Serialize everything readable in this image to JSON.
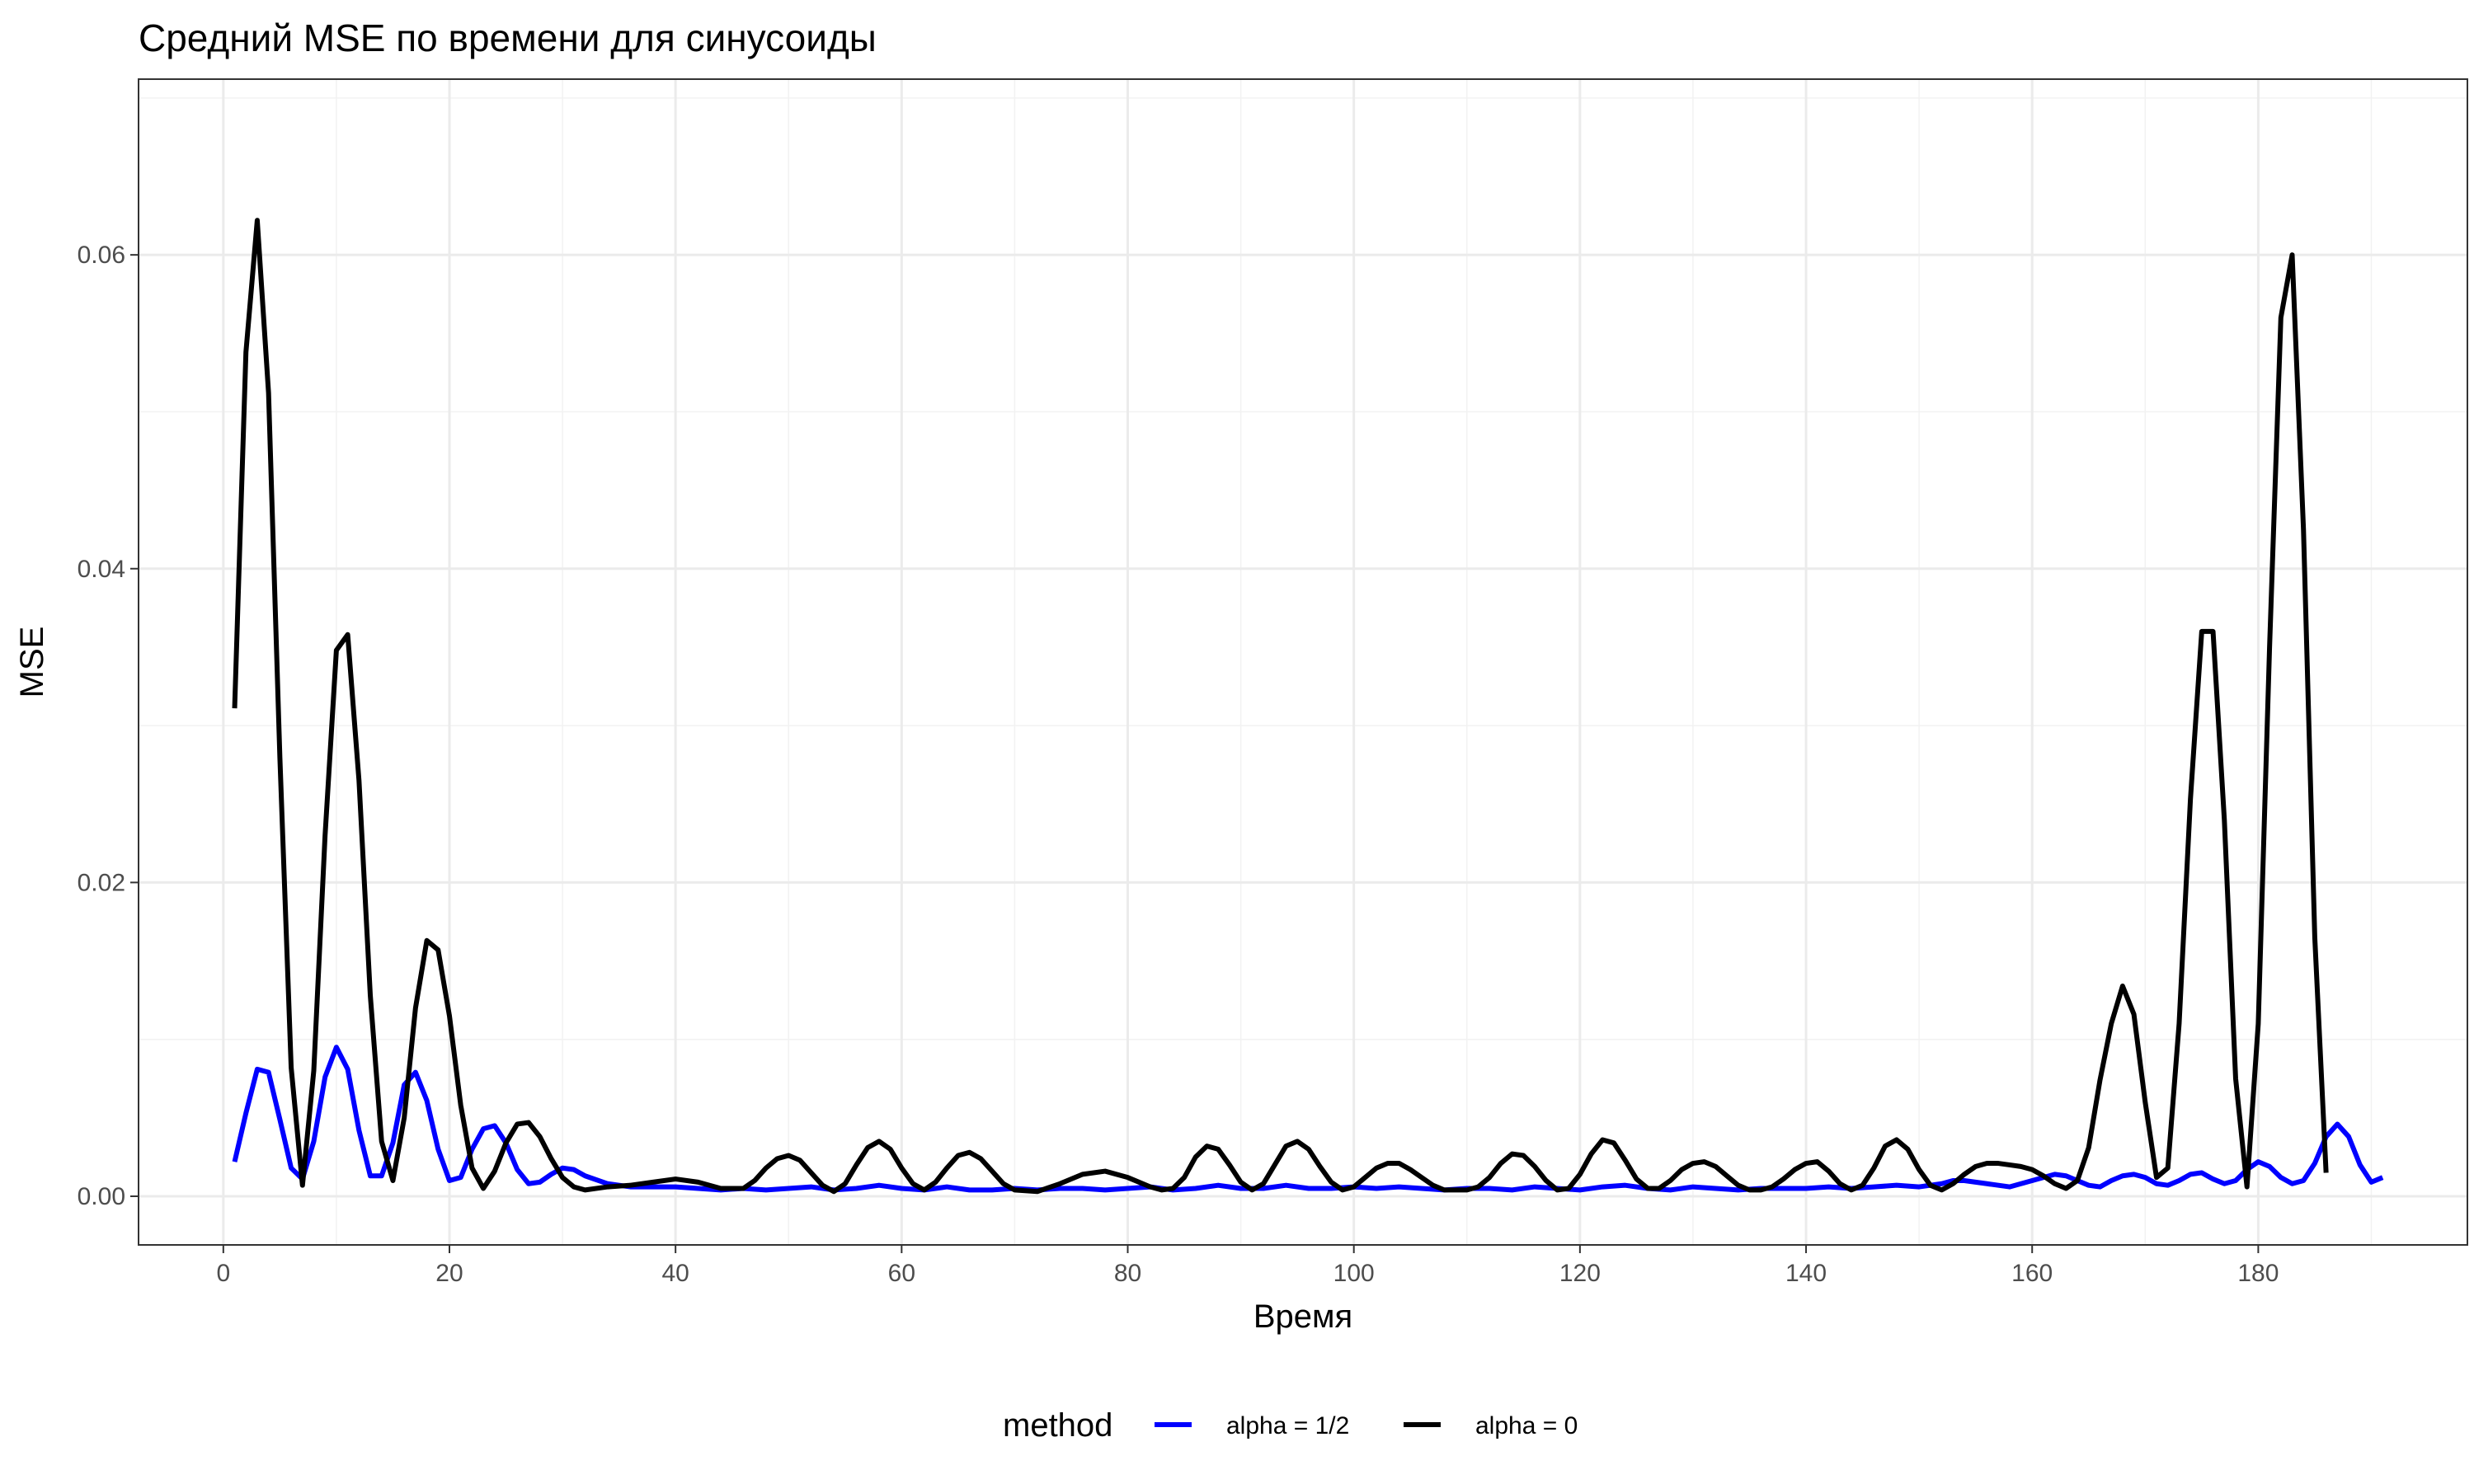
{
  "chart_data": {
    "type": "line",
    "title": "Средний MSE по времени для синусоиды",
    "xlabel": "Время",
    "ylabel": "MSE",
    "xlim": [
      -7.5,
      198.5
    ],
    "ylim": [
      -0.0031,
      0.0712
    ],
    "x_ticks": [
      0,
      20,
      40,
      60,
      80,
      100,
      120,
      140,
      160,
      180
    ],
    "x_tick_labels": [
      "0",
      "20",
      "40",
      "60",
      "80",
      "100",
      "120",
      "140",
      "160",
      "180"
    ],
    "y_ticks": [
      0.0,
      0.02,
      0.04,
      0.06
    ],
    "y_tick_labels": [
      "0.00",
      "0.02",
      "0.04",
      "0.06"
    ],
    "grid": true,
    "legend": {
      "title": "method",
      "position": "bottom"
    },
    "series": [
      {
        "name": "alpha = 1/2",
        "color": "#0000ff",
        "points": [
          [
            1,
            0.0022
          ],
          [
            2,
            0.0053
          ],
          [
            3,
            0.0081
          ],
          [
            4,
            0.0079
          ],
          [
            5,
            0.0049
          ],
          [
            6,
            0.0018
          ],
          [
            7,
            0.0011
          ],
          [
            8,
            0.0035
          ],
          [
            9,
            0.0076
          ],
          [
            10,
            0.0095
          ],
          [
            11,
            0.0081
          ],
          [
            12,
            0.0042
          ],
          [
            13,
            0.0013
          ],
          [
            14,
            0.0013
          ],
          [
            15,
            0.0034
          ],
          [
            16,
            0.0071
          ],
          [
            17,
            0.0079
          ],
          [
            18,
            0.0061
          ],
          [
            19,
            0.003
          ],
          [
            20,
            0.001
          ],
          [
            21,
            0.0012
          ],
          [
            22,
            0.003
          ],
          [
            23,
            0.0043
          ],
          [
            24,
            0.0045
          ],
          [
            25,
            0.0034
          ],
          [
            26,
            0.0017
          ],
          [
            27,
            0.0008
          ],
          [
            28,
            0.0009
          ],
          [
            29,
            0.0014
          ],
          [
            30,
            0.0018
          ],
          [
            31,
            0.0017
          ],
          [
            32,
            0.0013
          ],
          [
            34,
            0.0008
          ],
          [
            36,
            0.0006
          ],
          [
            38,
            0.0006
          ],
          [
            40,
            0.0006
          ],
          [
            42,
            0.0005
          ],
          [
            44,
            0.0004
          ],
          [
            46,
            0.0005
          ],
          [
            48,
            0.0004
          ],
          [
            50,
            0.0005
          ],
          [
            52,
            0.0006
          ],
          [
            54,
            0.0004
          ],
          [
            56,
            0.0005
          ],
          [
            58,
            0.0007
          ],
          [
            60,
            0.0005
          ],
          [
            62,
            0.0004
          ],
          [
            64,
            0.0006
          ],
          [
            66,
            0.0004
          ],
          [
            68,
            0.0004
          ],
          [
            70,
            0.0005
          ],
          [
            72,
            0.0004
          ],
          [
            74,
            0.0005
          ],
          [
            76,
            0.0005
          ],
          [
            78,
            0.0004
          ],
          [
            80,
            0.0005
          ],
          [
            82,
            0.0006
          ],
          [
            84,
            0.0004
          ],
          [
            86,
            0.0005
          ],
          [
            88,
            0.0007
          ],
          [
            90,
            0.0005
          ],
          [
            92,
            0.0005
          ],
          [
            94,
            0.0007
          ],
          [
            96,
            0.0005
          ],
          [
            98,
            0.0005
          ],
          [
            100,
            0.0006
          ],
          [
            102,
            0.0005
          ],
          [
            104,
            0.0006
          ],
          [
            106,
            0.0005
          ],
          [
            108,
            0.0004
          ],
          [
            110,
            0.0005
          ],
          [
            112,
            0.0005
          ],
          [
            114,
            0.0004
          ],
          [
            116,
            0.0006
          ],
          [
            118,
            0.0005
          ],
          [
            120,
            0.0004
          ],
          [
            122,
            0.0006
          ],
          [
            124,
            0.0007
          ],
          [
            126,
            0.0005
          ],
          [
            128,
            0.0004
          ],
          [
            130,
            0.0006
          ],
          [
            132,
            0.0005
          ],
          [
            134,
            0.0004
          ],
          [
            136,
            0.0005
          ],
          [
            138,
            0.0005
          ],
          [
            140,
            0.0005
          ],
          [
            142,
            0.0006
          ],
          [
            144,
            0.0005
          ],
          [
            146,
            0.0006
          ],
          [
            148,
            0.0007
          ],
          [
            150,
            0.0006
          ],
          [
            152,
            0.0008
          ],
          [
            153,
            0.001
          ],
          [
            154,
            0.001
          ],
          [
            156,
            0.0008
          ],
          [
            158,
            0.0006
          ],
          [
            160,
            0.001
          ],
          [
            162,
            0.0014
          ],
          [
            163,
            0.0013
          ],
          [
            164,
            0.001
          ],
          [
            165,
            0.0007
          ],
          [
            166,
            0.0006
          ],
          [
            167,
            0.001
          ],
          [
            168,
            0.0013
          ],
          [
            169,
            0.0014
          ],
          [
            170,
            0.0012
          ],
          [
            171,
            0.0008
          ],
          [
            172,
            0.0007
          ],
          [
            173,
            0.001
          ],
          [
            174,
            0.0014
          ],
          [
            175,
            0.0015
          ],
          [
            176,
            0.0011
          ],
          [
            177,
            0.0008
          ],
          [
            178,
            0.001
          ],
          [
            179,
            0.0017
          ],
          [
            180,
            0.0022
          ],
          [
            181,
            0.0019
          ],
          [
            182,
            0.0012
          ],
          [
            183,
            0.0008
          ],
          [
            184,
            0.001
          ],
          [
            185,
            0.0021
          ],
          [
            186,
            0.0038
          ],
          [
            187,
            0.0046
          ],
          [
            188,
            0.0038
          ],
          [
            189,
            0.002
          ],
          [
            190,
            0.0009
          ],
          [
            191,
            0.0012
          ]
        ]
      },
      {
        "name": "alpha = 0",
        "color": "#000000",
        "points": [
          [
            1,
            0.0311
          ],
          [
            2,
            0.0538
          ],
          [
            3,
            0.0622
          ],
          [
            4,
            0.0512
          ],
          [
            5,
            0.028
          ],
          [
            6,
            0.0082
          ],
          [
            7,
            0.0007
          ],
          [
            8,
            0.008
          ],
          [
            9,
            0.023
          ],
          [
            10,
            0.0348
          ],
          [
            11,
            0.0358
          ],
          [
            12,
            0.0265
          ],
          [
            13,
            0.0128
          ],
          [
            14,
            0.0035
          ],
          [
            15,
            0.001
          ],
          [
            16,
            0.005
          ],
          [
            17,
            0.012
          ],
          [
            18,
            0.0163
          ],
          [
            19,
            0.0157
          ],
          [
            20,
            0.0115
          ],
          [
            21,
            0.0058
          ],
          [
            22,
            0.0018
          ],
          [
            23,
            0.0005
          ],
          [
            24,
            0.0016
          ],
          [
            25,
            0.0034
          ],
          [
            26,
            0.0046
          ],
          [
            27,
            0.0047
          ],
          [
            28,
            0.0038
          ],
          [
            29,
            0.0024
          ],
          [
            30,
            0.0012
          ],
          [
            31,
            0.0006
          ],
          [
            32,
            0.0004
          ],
          [
            34,
            0.0006
          ],
          [
            36,
            0.0007
          ],
          [
            38,
            0.0009
          ],
          [
            40,
            0.0011
          ],
          [
            42,
            0.0009
          ],
          [
            44,
            0.0005
          ],
          [
            46,
            0.0005
          ],
          [
            47,
            0.001
          ],
          [
            48,
            0.0018
          ],
          [
            49,
            0.0024
          ],
          [
            50,
            0.0026
          ],
          [
            51,
            0.0023
          ],
          [
            52,
            0.0015
          ],
          [
            53,
            0.0007
          ],
          [
            54,
            0.0003
          ],
          [
            55,
            0.0008
          ],
          [
            56,
            0.002
          ],
          [
            57,
            0.0031
          ],
          [
            58,
            0.0035
          ],
          [
            59,
            0.003
          ],
          [
            60,
            0.0018
          ],
          [
            61,
            0.0008
          ],
          [
            62,
            0.0004
          ],
          [
            63,
            0.0009
          ],
          [
            64,
            0.0018
          ],
          [
            65,
            0.0026
          ],
          [
            66,
            0.0028
          ],
          [
            67,
            0.0024
          ],
          [
            68,
            0.0016
          ],
          [
            69,
            0.0008
          ],
          [
            70,
            0.0004
          ],
          [
            72,
            0.0003
          ],
          [
            74,
            0.0008
          ],
          [
            76,
            0.0014
          ],
          [
            78,
            0.0016
          ],
          [
            80,
            0.0012
          ],
          [
            82,
            0.0006
          ],
          [
            83,
            0.0004
          ],
          [
            84,
            0.0005
          ],
          [
            85,
            0.0012
          ],
          [
            86,
            0.0025
          ],
          [
            87,
            0.0032
          ],
          [
            88,
            0.003
          ],
          [
            89,
            0.002
          ],
          [
            90,
            0.0009
          ],
          [
            91,
            0.0004
          ],
          [
            92,
            0.0008
          ],
          [
            93,
            0.002
          ],
          [
            94,
            0.0032
          ],
          [
            95,
            0.0035
          ],
          [
            96,
            0.003
          ],
          [
            97,
            0.0019
          ],
          [
            98,
            0.0009
          ],
          [
            99,
            0.0004
          ],
          [
            100,
            0.0006
          ],
          [
            101,
            0.0012
          ],
          [
            102,
            0.0018
          ],
          [
            103,
            0.0021
          ],
          [
            104,
            0.0021
          ],
          [
            105,
            0.0017
          ],
          [
            106,
            0.0012
          ],
          [
            107,
            0.0007
          ],
          [
            108,
            0.0004
          ],
          [
            110,
            0.0004
          ],
          [
            111,
            0.0006
          ],
          [
            112,
            0.0012
          ],
          [
            113,
            0.0021
          ],
          [
            114,
            0.0027
          ],
          [
            115,
            0.0026
          ],
          [
            116,
            0.0019
          ],
          [
            117,
            0.001
          ],
          [
            118,
            0.0004
          ],
          [
            119,
            0.0005
          ],
          [
            120,
            0.0014
          ],
          [
            121,
            0.0027
          ],
          [
            122,
            0.0036
          ],
          [
            123,
            0.0034
          ],
          [
            124,
            0.0023
          ],
          [
            125,
            0.0011
          ],
          [
            126,
            0.0005
          ],
          [
            127,
            0.0005
          ],
          [
            128,
            0.001
          ],
          [
            129,
            0.0017
          ],
          [
            130,
            0.0021
          ],
          [
            131,
            0.0022
          ],
          [
            132,
            0.0019
          ],
          [
            133,
            0.0013
          ],
          [
            134,
            0.0007
          ],
          [
            135,
            0.0004
          ],
          [
            136,
            0.0004
          ],
          [
            137,
            0.0006
          ],
          [
            138,
            0.0011
          ],
          [
            139,
            0.0017
          ],
          [
            140,
            0.0021
          ],
          [
            141,
            0.0022
          ],
          [
            142,
            0.0016
          ],
          [
            143,
            0.0008
          ],
          [
            144,
            0.0004
          ],
          [
            145,
            0.0007
          ],
          [
            146,
            0.0018
          ],
          [
            147,
            0.0032
          ],
          [
            148,
            0.0036
          ],
          [
            149,
            0.003
          ],
          [
            150,
            0.0017
          ],
          [
            151,
            0.0007
          ],
          [
            152,
            0.0004
          ],
          [
            153,
            0.0008
          ],
          [
            154,
            0.0014
          ],
          [
            155,
            0.0019
          ],
          [
            156,
            0.0021
          ],
          [
            157,
            0.0021
          ],
          [
            158,
            0.002
          ],
          [
            159,
            0.0019
          ],
          [
            160,
            0.0017
          ],
          [
            161,
            0.0013
          ],
          [
            162,
            0.0008
          ],
          [
            163,
            0.0005
          ],
          [
            164,
            0.001
          ],
          [
            165,
            0.0031
          ],
          [
            166,
            0.0074
          ],
          [
            167,
            0.011
          ],
          [
            168,
            0.0134
          ],
          [
            169,
            0.0116
          ],
          [
            170,
            0.006
          ],
          [
            171,
            0.0012
          ],
          [
            172,
            0.0018
          ],
          [
            173,
            0.011
          ],
          [
            174,
            0.0253
          ],
          [
            175,
            0.036
          ],
          [
            176,
            0.036
          ],
          [
            177,
            0.024
          ],
          [
            178,
            0.0075
          ],
          [
            179,
            0.0006
          ],
          [
            180,
            0.011
          ],
          [
            181,
            0.035
          ],
          [
            182,
            0.056
          ],
          [
            183,
            0.06
          ],
          [
            184,
            0.0425
          ],
          [
            185,
            0.0165
          ],
          [
            186,
            0.0015
          ]
        ]
      }
    ]
  }
}
